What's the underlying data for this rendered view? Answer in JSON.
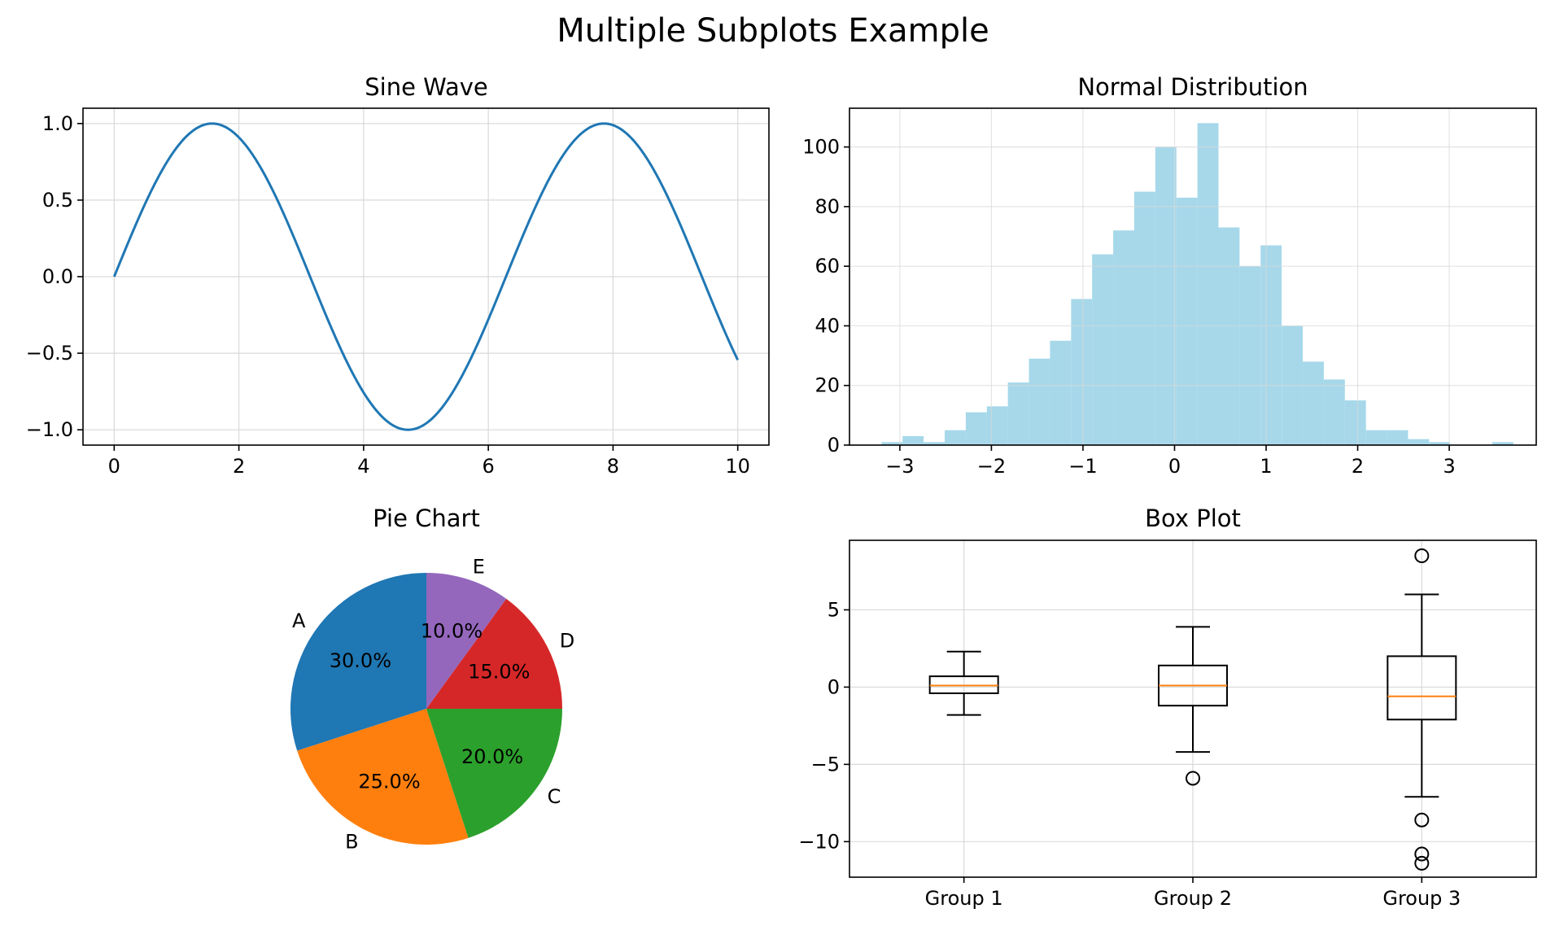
{
  "figure": {
    "title": "Multiple Subplots Example"
  },
  "chart_data": [
    {
      "type": "line",
      "title": "Sine Wave",
      "xlabel": "",
      "ylabel": "",
      "function": "sin(x)",
      "x_range": [
        0,
        10
      ],
      "xlim": [
        -0.5,
        10.5
      ],
      "ylim": [
        -1.1,
        1.1
      ],
      "xticks": [
        0,
        2,
        4,
        6,
        8,
        10
      ],
      "xtick_labels": [
        "0",
        "2",
        "4",
        "6",
        "8",
        "10"
      ],
      "yticks": [
        1.0,
        0.5,
        0.0,
        -0.5,
        -1.0
      ],
      "ytick_labels": [
        "1.0",
        "0.5",
        "0.0",
        "−0.5",
        "−1.0"
      ],
      "series": [
        {
          "color": "#1f77b4"
        }
      ],
      "grid": true
    },
    {
      "type": "bar",
      "subtype": "histogram",
      "title": "Normal Distribution",
      "xlabel": "",
      "ylabel": "",
      "bin_edges": [
        -3.2,
        -2.97,
        -2.74,
        -2.51,
        -2.28,
        -2.05,
        -1.82,
        -1.59,
        -1.36,
        -1.13,
        -0.9,
        -0.67,
        -0.44,
        -0.21,
        0.02,
        0.25,
        0.48,
        0.71,
        0.94,
        1.17,
        1.4,
        1.63,
        1.86,
        2.09,
        2.32,
        2.55,
        2.78,
        3.01,
        3.24,
        3.47,
        3.7
      ],
      "counts": [
        1,
        3,
        1,
        5,
        11,
        13,
        21,
        29,
        35,
        49,
        64,
        72,
        85,
        100,
        83,
        108,
        73,
        60,
        67,
        40,
        28,
        22,
        15,
        5,
        5,
        2,
        1,
        0,
        0,
        1
      ],
      "xlim": [
        -3.55,
        3.95
      ],
      "ylim": [
        0,
        113
      ],
      "xticks": [
        -3,
        -2,
        -1,
        0,
        1,
        2,
        3
      ],
      "xtick_labels": [
        "−3",
        "−2",
        "−1",
        "0",
        "1",
        "2",
        "3"
      ],
      "yticks": [
        0,
        20,
        40,
        60,
        80,
        100
      ],
      "ytick_labels": [
        "0",
        "20",
        "40",
        "60",
        "80",
        "100"
      ],
      "color": "#a6d8ea",
      "grid": true
    },
    {
      "type": "pie",
      "title": "Pie Chart",
      "slices": [
        {
          "label": "A",
          "value": 30,
          "pct": "30.0%",
          "color": "#1f77b4"
        },
        {
          "label": "B",
          "value": 25,
          "pct": "25.0%",
          "color": "#ff7f0e"
        },
        {
          "label": "C",
          "value": 20,
          "pct": "20.0%",
          "color": "#2ca02c"
        },
        {
          "label": "D",
          "value": 15,
          "pct": "15.0%",
          "color": "#d62728"
        },
        {
          "label": "E",
          "value": 10,
          "pct": "10.0%",
          "color": "#9467bd"
        }
      ],
      "start_angle_deg": 90,
      "direction": "counterclockwise"
    },
    {
      "type": "box",
      "title": "Box Plot",
      "categories": [
        "Group 1",
        "Group 2",
        "Group 3"
      ],
      "boxes": [
        {
          "name": "Group 1",
          "whisker_low": -1.8,
          "q1": -0.4,
          "median": 0.1,
          "q3": 0.7,
          "whisker_high": 2.3,
          "outliers": []
        },
        {
          "name": "Group 2",
          "whisker_low": -4.2,
          "q1": -1.2,
          "median": 0.1,
          "q3": 1.4,
          "whisker_high": 3.9,
          "outliers": [
            -5.9
          ]
        },
        {
          "name": "Group 3",
          "whisker_low": -7.1,
          "q1": -2.1,
          "median": -0.6,
          "q3": 2.0,
          "whisker_high": 6.0,
          "outliers": [
            8.5,
            -8.6,
            -10.8,
            -11.4
          ]
        }
      ],
      "ylim": [
        -12.3,
        9.5
      ],
      "yticks": [
        5,
        0,
        -5,
        -10
      ],
      "ytick_labels": [
        "5",
        "0",
        "−5",
        "−10"
      ],
      "median_color": "#ff7f0e",
      "grid": true
    }
  ]
}
